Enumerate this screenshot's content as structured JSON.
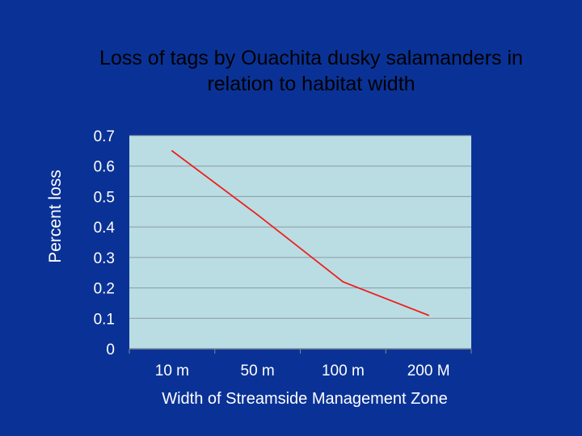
{
  "colors": {
    "background": "#0a3296",
    "plot_area": "#b9dde3",
    "gridline": "#8c9aa3",
    "line": "#ee1f1f",
    "title_text": "#000000",
    "axis_text": "#ffffff"
  },
  "chart_data": {
    "type": "line",
    "title_lines": [
      "Loss of tags by Ouachita dusky salamanders in",
      "relation to habitat width"
    ],
    "xlabel": "Width of Streamside Management Zone",
    "ylabel": "Percent loss",
    "categories": [
      "10 m",
      "50 m",
      "100 m",
      "200 M"
    ],
    "series": [
      {
        "values": [
          0.65,
          0.44,
          0.22,
          0.11
        ]
      }
    ],
    "ylim": [
      0,
      0.7
    ],
    "yticks": [
      "0",
      "0.1",
      "0.2",
      "0.3",
      "0.4",
      "0.5",
      "0.6",
      "0.7"
    ],
    "grid": true,
    "legend": "none"
  }
}
